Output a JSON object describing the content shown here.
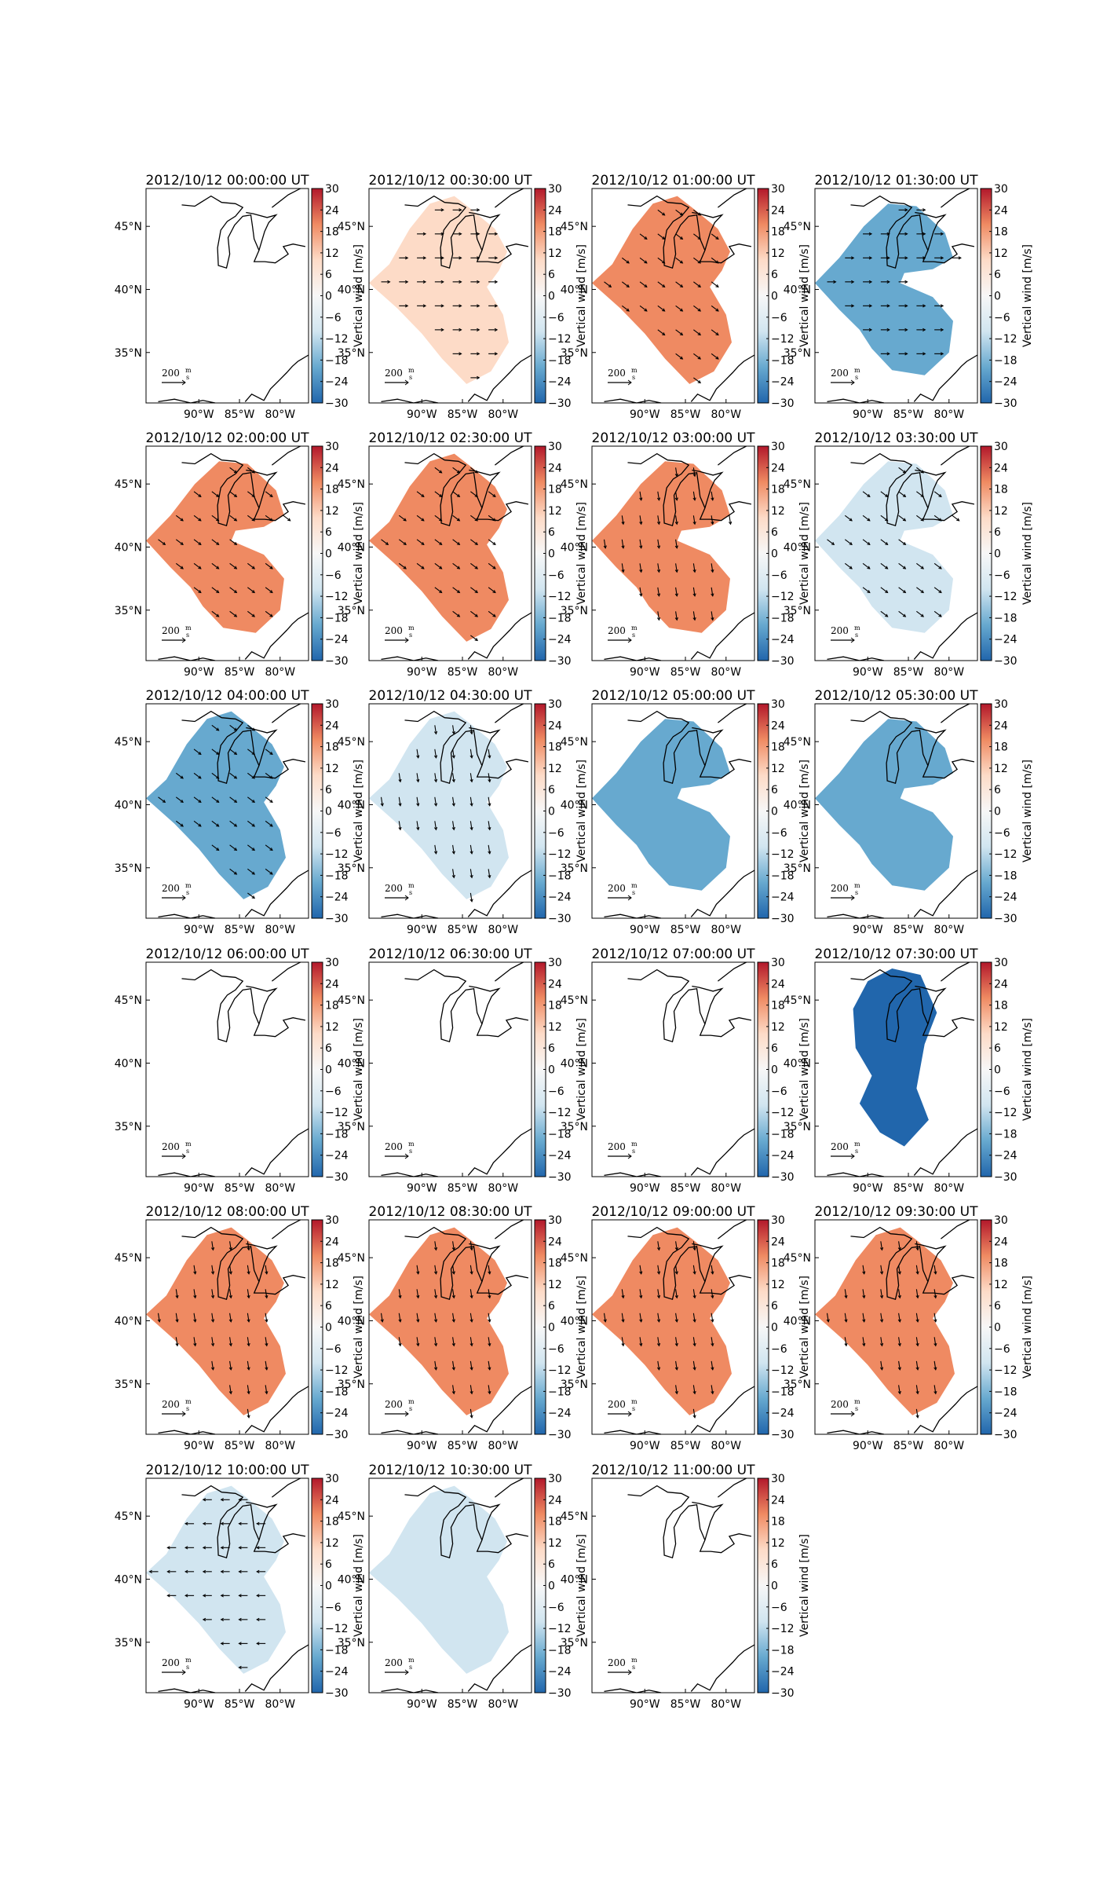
{
  "figure": {
    "colorbar_label": "Vertical wind [m/s]",
    "colorbar_ticks": [
      "30",
      "24",
      "18",
      "12",
      "6",
      "0",
      "−6",
      "−12",
      "−18",
      "−24",
      "−30"
    ],
    "lat_ticks": [
      "45°N",
      "40°N",
      "35°N"
    ],
    "lon_ticks": [
      "90°W",
      "85°W",
      "80°W"
    ],
    "scale_label": "200",
    "scale_unit_num": "m",
    "scale_unit_den": "s",
    "colors": {
      "strong_positive": "#b2182b",
      "positive": "#ef8a62",
      "weak_positive": "#fddbc7",
      "neutral": "#f7f7f7",
      "weak_negative": "#d1e5f0",
      "negative": "#67a9cf",
      "strong_negative": "#2166ac"
    }
  },
  "chart_data": {
    "type": "heatmap",
    "colorbar_range": [
      -30,
      30
    ],
    "units": "m/s",
    "panels": [
      {
        "title": "2012/10/12 00:00:00 UT",
        "value": null,
        "shape": "none",
        "arrow": "none"
      },
      {
        "title": "2012/10/12 00:30:00 UT",
        "value": 3,
        "shape": "wide",
        "arrow": "east"
      },
      {
        "title": "2012/10/12 01:00:00 UT",
        "value": 12,
        "shape": "wide",
        "arrow": "southeast"
      },
      {
        "title": "2012/10/12 01:30:00 UT",
        "value": -8,
        "shape": "split",
        "arrow": "east"
      },
      {
        "title": "2012/10/12 02:00:00 UT",
        "value": 10,
        "shape": "split",
        "arrow": "southeast"
      },
      {
        "title": "2012/10/12 02:30:00 UT",
        "value": 12,
        "shape": "wide",
        "arrow": "southeast"
      },
      {
        "title": "2012/10/12 03:00:00 UT",
        "value": 14,
        "shape": "split",
        "arrow": "south"
      },
      {
        "title": "2012/10/12 03:30:00 UT",
        "value": -3,
        "shape": "split",
        "arrow": "southeast"
      },
      {
        "title": "2012/10/12 04:00:00 UT",
        "value": -12,
        "shape": "wide",
        "arrow": "southeast"
      },
      {
        "title": "2012/10/12 04:30:00 UT",
        "value": -6,
        "shape": "wide",
        "arrow": "south"
      },
      {
        "title": "2012/10/12 05:00:00 UT",
        "value": -12,
        "shape": "split",
        "arrow": "none"
      },
      {
        "title": "2012/10/12 05:30:00 UT",
        "value": -16,
        "shape": "split",
        "arrow": "none"
      },
      {
        "title": "2012/10/12 06:00:00 UT",
        "value": null,
        "shape": "none",
        "arrow": "none"
      },
      {
        "title": "2012/10/12 06:30:00 UT",
        "value": null,
        "shape": "none",
        "arrow": "none"
      },
      {
        "title": "2012/10/12 07:00:00 UT",
        "value": null,
        "shape": "none",
        "arrow": "none"
      },
      {
        "title": "2012/10/12 07:30:00 UT",
        "value": -22,
        "shape": "narrow",
        "arrow": "none"
      },
      {
        "title": "2012/10/12 08:00:00 UT",
        "value": 12,
        "shape": "wide",
        "arrow": "south"
      },
      {
        "title": "2012/10/12 08:30:00 UT",
        "value": 10,
        "shape": "wide",
        "arrow": "south"
      },
      {
        "title": "2012/10/12 09:00:00 UT",
        "value": 12,
        "shape": "wide",
        "arrow": "south"
      },
      {
        "title": "2012/10/12 09:30:00 UT",
        "value": 9,
        "shape": "wide",
        "arrow": "south"
      },
      {
        "title": "2012/10/12 10:00:00 UT",
        "value": -2,
        "shape": "wide",
        "arrow": "west"
      },
      {
        "title": "2012/10/12 10:30:00 UT",
        "value": -4,
        "shape": "wide",
        "arrow": "none"
      },
      {
        "title": "2012/10/12 11:00:00 UT",
        "value": null,
        "shape": "none",
        "arrow": "none"
      }
    ]
  }
}
